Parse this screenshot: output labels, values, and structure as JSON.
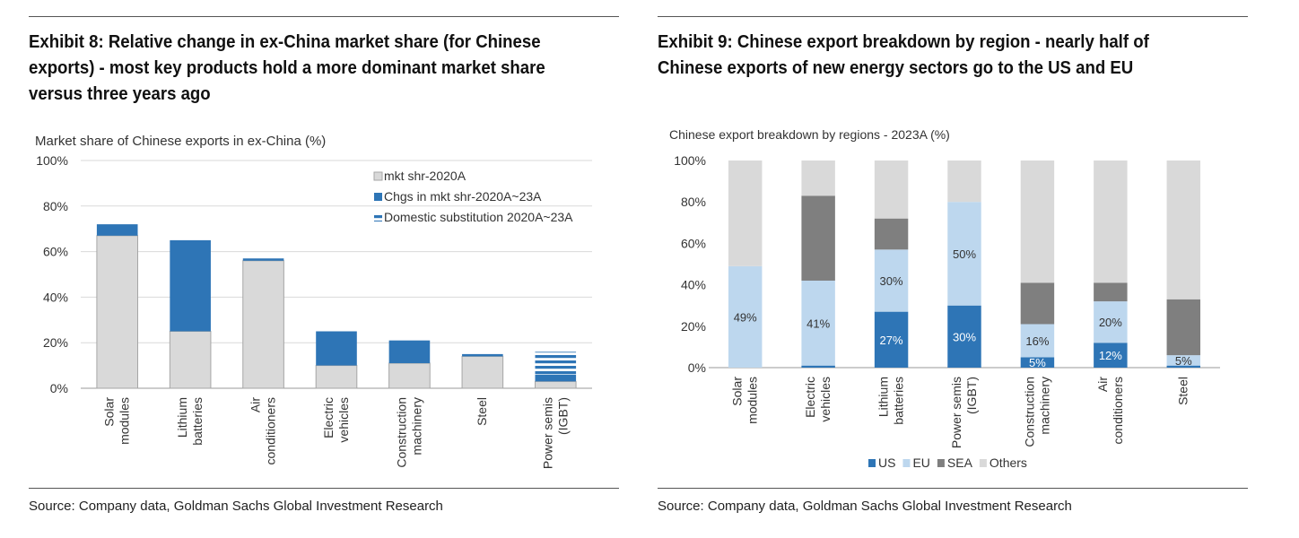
{
  "left": {
    "title_lines": [
      "Exhibit 8: Relative change in ex-China market share (for Chinese",
      "exports) - most key products hold a more dominant market share",
      "versus three years ago"
    ],
    "source": "Source: Company data, Goldman Sachs Global Investment Research"
  },
  "right": {
    "title_lines": [
      "Exhibit 9: Chinese export breakdown by region - nearly half of",
      "Chinese exports of new energy sectors go to the US and EU"
    ],
    "source": "Source: Company data, Goldman Sachs Global Investment Research"
  },
  "chart_data": [
    {
      "type": "bar",
      "stacked": true,
      "title": "Market share of Chinese exports in ex-China (%)",
      "categories": [
        [
          "Solar",
          "modules"
        ],
        [
          "Lithium",
          "batteries"
        ],
        [
          "Air",
          "conditioners"
        ],
        [
          "Electric",
          "vehicles"
        ],
        [
          "Construction",
          "machinery"
        ],
        [
          "Steel"
        ],
        [
          "Power semis",
          "(IGBT)"
        ]
      ],
      "series": [
        {
          "name": "mkt shr-2020A",
          "color": "#d9d9d9",
          "values": [
            67,
            25,
            56,
            10,
            11,
            14,
            3
          ]
        },
        {
          "name": "Chgs in mkt shr-2020A~23A",
          "color": "#2e75b6",
          "values": [
            5,
            40,
            1,
            15,
            10,
            1,
            3
          ]
        },
        {
          "name": "Domestic substitution 2020A~23A",
          "color": "#2e75b6",
          "pattern": "horizontal-stripes",
          "values": [
            0,
            0,
            0,
            0,
            0,
            0,
            10
          ]
        }
      ],
      "yticks": [
        "0%",
        "20%",
        "40%",
        "60%",
        "80%",
        "100%"
      ],
      "ylim": [
        0,
        100
      ],
      "legend_position": "top-right",
      "grid": true
    },
    {
      "type": "bar",
      "stacked": true,
      "title": "Chinese export breakdown by regions - 2023A (%)",
      "categories": [
        [
          "Solar",
          "modules"
        ],
        [
          "Electric",
          "vehicles"
        ],
        [
          "Lithium",
          "batteries"
        ],
        [
          "Power semis",
          "(IGBT)"
        ],
        [
          "Construction",
          "machinery"
        ],
        [
          "Air",
          "conditioners"
        ],
        [
          "Steel"
        ]
      ],
      "series": [
        {
          "name": "US",
          "color": "#2e75b6",
          "values": [
            0,
            1,
            27,
            30,
            5,
            12,
            1
          ],
          "labels": [
            "",
            "",
            "27%",
            "30%",
            "5%",
            "12%",
            ""
          ]
        },
        {
          "name": "EU",
          "color": "#bdd7ee",
          "values": [
            49,
            41,
            30,
            50,
            16,
            20,
            5
          ],
          "labels": [
            "49%",
            "41%",
            "30%",
            "50%",
            "16%",
            "20%",
            "5%"
          ]
        },
        {
          "name": "SEA",
          "color": "#7f7f7f",
          "values": [
            0,
            41,
            15,
            0,
            20,
            9,
            27
          ],
          "labels": [
            "",
            "",
            "",
            "",
            "",
            "",
            ""
          ]
        },
        {
          "name": "Others",
          "color": "#d9d9d9",
          "values": [
            51,
            17,
            28,
            20,
            59,
            59,
            67
          ],
          "labels": [
            "",
            "",
            "",
            "",
            "",
            "",
            ""
          ]
        }
      ],
      "yticks": [
        "0%",
        "20%",
        "40%",
        "60%",
        "80%",
        "100%"
      ],
      "ylim": [
        0,
        100
      ],
      "legend_position": "bottom",
      "grid": false
    }
  ]
}
